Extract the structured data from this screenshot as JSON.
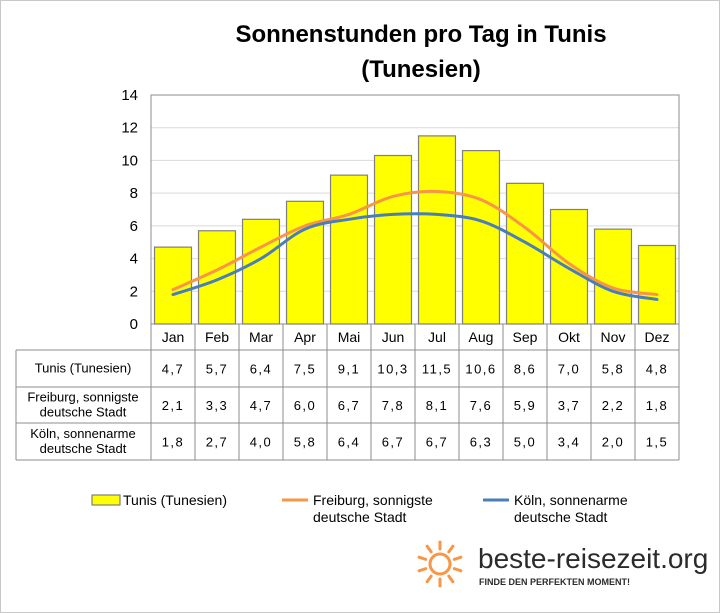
{
  "chart_data": {
    "type": "bar",
    "title_lines": [
      "Sonnenstunden pro Tag in Tunis",
      "(Tunesien)"
    ],
    "categories": [
      "Jan",
      "Feb",
      "Mar",
      "Apr",
      "Mai",
      "Jun",
      "Jul",
      "Aug",
      "Sep",
      "Okt",
      "Nov",
      "Dez"
    ],
    "ylim": [
      0,
      14
    ],
    "yticks": [
      0,
      2,
      4,
      6,
      8,
      10,
      12,
      14
    ],
    "grid": true,
    "legend_position": "bottom",
    "series": [
      {
        "name": "Tunis (Tunesien)",
        "table_label_lines": [
          "Tunis (Tunesien)"
        ],
        "legend_label_lines": [
          "Tunis (Tunesien)"
        ],
        "kind": "bar",
        "color": "#ffff00",
        "values": [
          4.7,
          5.7,
          6.4,
          7.5,
          9.1,
          10.3,
          11.5,
          10.6,
          8.6,
          7.0,
          5.8,
          4.8
        ],
        "labels": [
          "4,7",
          "5,7",
          "6,4",
          "7,5",
          "9,1",
          "10,3",
          "11,5",
          "10,6",
          "8,6",
          "7,0",
          "5,8",
          "4,8"
        ]
      },
      {
        "name": "Freiburg, sonnigste deutsche Stadt",
        "table_label_lines": [
          "Freiburg, sonnigste",
          "deutsche Stadt"
        ],
        "legend_label_lines": [
          "Freiburg, sonnigste",
          "deutsche Stadt"
        ],
        "kind": "line",
        "color": "#f79646",
        "values": [
          2.1,
          3.3,
          4.7,
          6.0,
          6.7,
          7.8,
          8.1,
          7.6,
          5.9,
          3.7,
          2.2,
          1.8
        ],
        "labels": [
          "2,1",
          "3,3",
          "4,7",
          "6,0",
          "6,7",
          "7,8",
          "8,1",
          "7,6",
          "5,9",
          "3,7",
          "2,2",
          "1,8"
        ]
      },
      {
        "name": "Köln, sonnenarme deutsche Stadt",
        "table_label_lines": [
          "Köln, sonnenarme",
          "deutsche Stadt"
        ],
        "legend_label_lines": [
          "Köln, sonnenarme",
          "deutsche Stadt"
        ],
        "kind": "line",
        "color": "#4a7ebb",
        "values": [
          1.8,
          2.7,
          4.0,
          5.8,
          6.4,
          6.7,
          6.7,
          6.3,
          5.0,
          3.4,
          2.0,
          1.5
        ],
        "labels": [
          "1,8",
          "2,7",
          "4,0",
          "5,8",
          "6,4",
          "6,7",
          "6,7",
          "6,3",
          "5,0",
          "3,4",
          "2,0",
          "1,5"
        ]
      }
    ]
  },
  "logo": {
    "name": "beste-reisezeit.org",
    "tagline": "FINDE DEN PERFEKTEN MOMENT!",
    "icon": "sun-icon",
    "color": "#f79646"
  }
}
